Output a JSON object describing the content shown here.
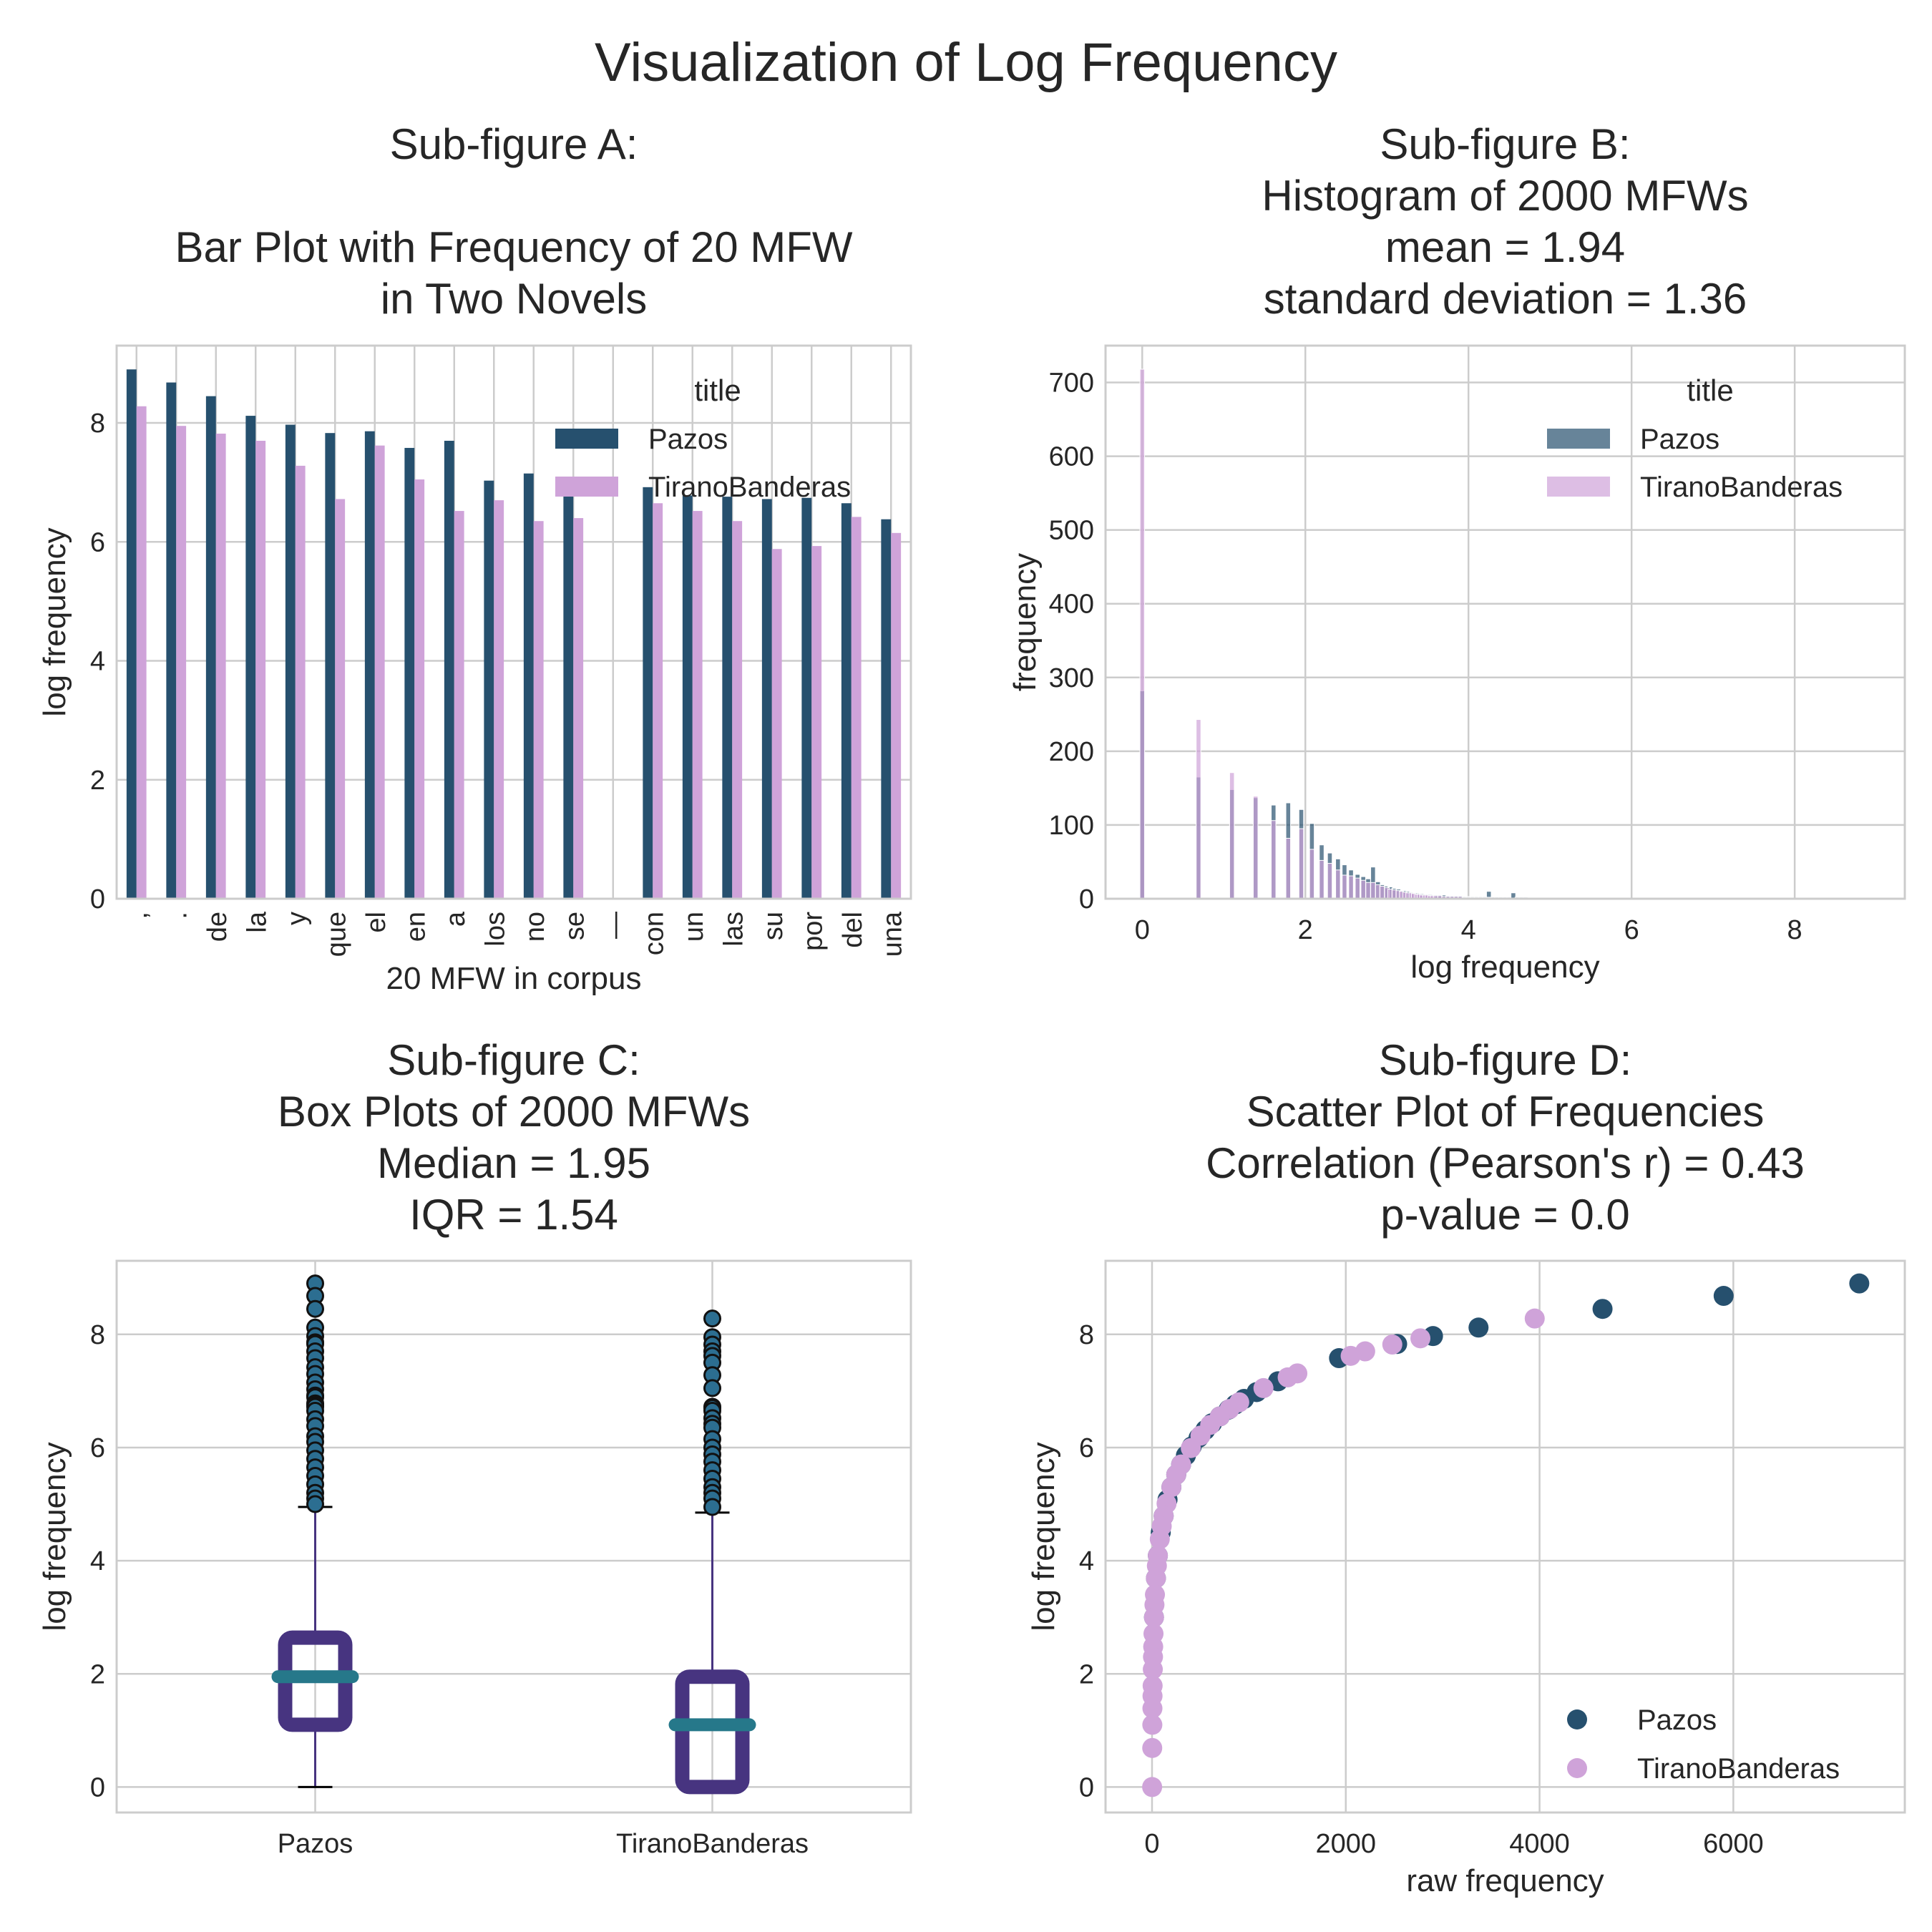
{
  "suptitle": "Visualization of Log Frequency",
  "colors": {
    "pazos": "#26506e",
    "tirano": "#cfa3d9",
    "box": "#473480",
    "median": "#26788a",
    "outlier_fill": "#2c6e91",
    "grid": "#cccccc"
  },
  "chart_data": [
    {
      "id": "A",
      "type": "bar",
      "title_lines": [
        "Sub-figure A:",
        "",
        "Bar Plot with Frequency of 20 MFW",
        "in Two Novels"
      ],
      "xlabel": "20 MFW in corpus",
      "ylabel": "log frequency",
      "ylim": [
        0,
        9.3
      ],
      "yticks": [
        0,
        2,
        4,
        6,
        8
      ],
      "grid": true,
      "legend": {
        "title": "title",
        "placement": "top-right"
      },
      "categories": [
        ",",
        ".",
        "de",
        "la",
        "y",
        "que",
        "el",
        "en",
        "a",
        "los",
        "no",
        "se",
        "—",
        "con",
        "un",
        "las",
        "su",
        "por",
        "del",
        "una"
      ],
      "series": [
        {
          "name": "Pazos",
          "values": [
            8.9,
            8.68,
            8.45,
            8.12,
            7.97,
            7.83,
            7.86,
            7.58,
            7.7,
            7.03,
            7.15,
            6.89,
            null,
            6.92,
            6.78,
            6.76,
            6.72,
            6.74,
            6.65,
            6.38
          ]
        },
        {
          "name": "TiranoBanderas",
          "values": [
            8.28,
            7.95,
            7.82,
            7.7,
            7.28,
            6.72,
            7.62,
            7.05,
            6.52,
            6.7,
            6.35,
            6.4,
            null,
            6.65,
            6.52,
            6.35,
            5.88,
            5.93,
            6.42,
            6.15
          ]
        }
      ]
    },
    {
      "id": "B",
      "type": "bar",
      "subtype": "histogram",
      "title_lines": [
        "Sub-figure B:",
        "Histogram of 2000 MFWs",
        "mean =  1.94",
        "standard deviation = 1.36"
      ],
      "xlabel": "log frequency",
      "ylabel": "frequency",
      "xlim": [
        -0.45,
        9.35
      ],
      "ylim": [
        0,
        750
      ],
      "xticks": [
        0,
        2,
        4,
        6,
        8
      ],
      "yticks": [
        0,
        100,
        200,
        300,
        400,
        500,
        600,
        700
      ],
      "grid": true,
      "legend": {
        "title": "title",
        "placement": "top-right"
      },
      "x": [
        0,
        0.69,
        1.1,
        1.39,
        1.61,
        1.79,
        1.95,
        2.08,
        2.2,
        2.3,
        2.4,
        2.48,
        2.56,
        2.64,
        2.71,
        2.77,
        2.83,
        2.89,
        2.94,
        3.0,
        3.04,
        3.09,
        3.14,
        3.18,
        3.22,
        3.26,
        3.3,
        3.33,
        3.37,
        3.4,
        3.43,
        3.47,
        3.5,
        3.53,
        3.56,
        3.6,
        3.65,
        3.7,
        3.75,
        3.8,
        3.85,
        3.9,
        3.95,
        4.0,
        4.05,
        4.1,
        4.15,
        4.2,
        4.25,
        4.3,
        4.35,
        4.4,
        4.45,
        4.5,
        4.55,
        4.6,
        4.65,
        4.7,
        4.75,
        4.8
      ],
      "series": [
        {
          "name": "Pazos",
          "values": [
            282,
            165,
            148,
            137,
            127,
            130,
            121,
            102,
            73,
            62,
            54,
            46,
            39,
            33,
            30,
            27,
            43,
            23,
            19,
            17,
            16,
            14,
            13,
            11,
            11,
            10,
            9,
            8,
            8,
            7,
            7,
            6,
            6,
            6,
            5,
            5,
            5,
            5,
            4,
            4,
            4,
            4,
            3,
            3,
            3,
            3,
            3,
            3,
            10,
            2,
            2,
            2,
            2,
            2,
            8,
            2,
            2,
            2,
            1,
            1
          ]
        },
        {
          "name": "TiranoBanderas",
          "values": [
            718,
            243,
            171,
            139,
            106,
            82,
            95,
            67,
            52,
            48,
            39,
            32,
            31,
            28,
            25,
            22,
            22,
            19,
            17,
            15,
            13,
            12,
            11,
            10,
            9,
            8,
            8,
            7,
            6,
            6,
            5,
            5,
            5,
            4,
            4,
            4,
            4,
            3,
            3,
            3,
            3,
            3,
            2,
            2,
            2,
            2,
            2,
            2,
            2,
            1,
            1,
            1,
            1,
            1,
            1,
            1,
            1,
            1,
            1,
            1
          ]
        }
      ]
    },
    {
      "id": "C",
      "type": "box",
      "title_lines": [
        "Sub-figure C:",
        "Box Plots of 2000 MFWs",
        "Median =  1.95",
        "IQR = 1.54"
      ],
      "xlabel": "",
      "ylabel": "log frequency",
      "ylim": [
        -0.45,
        9.3
      ],
      "yticks": [
        0,
        2,
        4,
        6,
        8
      ],
      "grid": true,
      "categories": [
        "Pazos",
        "TiranoBanderas"
      ],
      "boxes": [
        {
          "name": "Pazos",
          "whisker_low": 0,
          "q1": 1.1,
          "median": 1.95,
          "q3": 2.64,
          "whisker_high": 4.95,
          "outliers": [
            8.9,
            8.68,
            8.45,
            8.12,
            7.97,
            7.86,
            7.83,
            7.7,
            7.58,
            7.42,
            7.3,
            7.15,
            7.03,
            6.92,
            6.89,
            6.78,
            6.76,
            6.74,
            6.72,
            6.65,
            6.5,
            6.38,
            6.2,
            6.1,
            5.95,
            5.8,
            5.65,
            5.5,
            5.35,
            5.2,
            5.1,
            5.0
          ]
        },
        {
          "name": "TiranoBanderas",
          "whisker_low": 0,
          "q1": 0,
          "median": 1.1,
          "q3": 1.95,
          "whisker_high": 4.85,
          "outliers": [
            8.28,
            7.95,
            7.82,
            7.7,
            7.62,
            7.5,
            7.28,
            7.05,
            6.72,
            6.7,
            6.65,
            6.52,
            6.42,
            6.35,
            6.15,
            6.0,
            5.88,
            5.75,
            5.6,
            5.45,
            5.3,
            5.2,
            5.1,
            4.95
          ]
        }
      ]
    },
    {
      "id": "D",
      "type": "scatter",
      "title_lines": [
        "Sub-figure D:",
        "Scatter Plot of Frequencies",
        "Correlation (Pearson's r) =  0.43",
        "p-value = 0.0"
      ],
      "xlabel": "raw frequency",
      "ylabel": "log frequency",
      "xlim": [
        -480,
        7770
      ],
      "ylim": [
        -0.45,
        9.3
      ],
      "xticks": [
        0,
        2000,
        4000,
        6000
      ],
      "yticks": [
        0,
        2,
        4,
        6,
        8
      ],
      "grid": true,
      "legend": {
        "placement": "lower-right"
      },
      "series": [
        {
          "name": "Pazos",
          "x": [
            7300,
            5900,
            4650,
            3370,
            2900,
            2530,
            1930,
            1300,
            1080,
            950,
            860,
            790,
            700,
            620,
            550,
            480,
            410,
            350,
            300,
            250,
            200,
            160,
            120,
            90,
            60,
            40,
            20
          ],
          "y": [
            8.9,
            8.68,
            8.45,
            8.12,
            7.97,
            7.83,
            7.58,
            7.17,
            6.98,
            6.86,
            6.76,
            6.67,
            6.55,
            6.43,
            6.31,
            6.17,
            6.02,
            5.86,
            5.7,
            5.52,
            5.3,
            5.08,
            4.79,
            4.5,
            4.09,
            3.69,
            3.0
          ]
        },
        {
          "name": "TiranoBanderas",
          "x": [
            3950,
            2770,
            2480,
            2200,
            2050,
            1500,
            1400,
            1150,
            900,
            800,
            700,
            600,
            500,
            400,
            300,
            250,
            200,
            150,
            120,
            100,
            80,
            60,
            50,
            40,
            30,
            25,
            20,
            15,
            12,
            10,
            8,
            6,
            5,
            4,
            3,
            2,
            1
          ],
          "y": [
            8.28,
            7.93,
            7.82,
            7.7,
            7.62,
            7.31,
            7.24,
            7.05,
            6.8,
            6.68,
            6.55,
            6.4,
            6.21,
            5.99,
            5.7,
            5.52,
            5.3,
            5.01,
            4.79,
            4.61,
            4.38,
            4.09,
            3.91,
            3.69,
            3.4,
            3.22,
            3.0,
            2.71,
            2.48,
            2.3,
            2.08,
            1.79,
            1.61,
            1.39,
            1.1,
            0.69,
            0.0
          ]
        }
      ]
    }
  ]
}
